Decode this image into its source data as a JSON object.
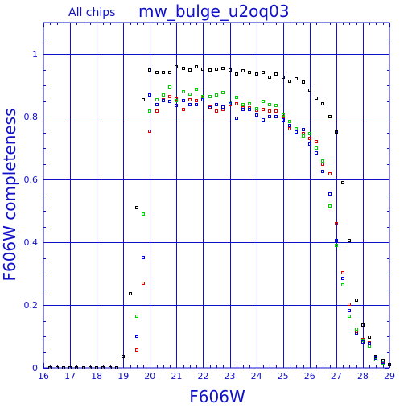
{
  "chart_data": {
    "type": "scatter",
    "subtitle": "All chips",
    "title": "mw_bulge_u2oq03",
    "xlabel": "F606W",
    "ylabel": "F606W completeness",
    "xlim": [
      16,
      29
    ],
    "ylim": [
      0,
      1.1
    ],
    "x_ticks": [
      16,
      17,
      18,
      19,
      20,
      21,
      22,
      23,
      24,
      25,
      26,
      27,
      28,
      29
    ],
    "y_ticks": [
      0,
      0.2,
      0.4,
      0.6,
      0.8,
      1
    ],
    "y_tick_labels": [
      "0",
      "0.2",
      "0.4",
      "0.6",
      "0.8",
      "1"
    ],
    "grid": true,
    "colors": {
      "axis": "#1010c8",
      "black": "#000000",
      "red": "#e00000",
      "green": "#00d000",
      "blue": "#0000e0"
    },
    "series": [
      {
        "color": "#000000",
        "points": [
          [
            16.25,
            0
          ],
          [
            16.5,
            0
          ],
          [
            16.75,
            0
          ],
          [
            17,
            0
          ],
          [
            17.25,
            0
          ],
          [
            17.5,
            0
          ],
          [
            17.75,
            0
          ],
          [
            18,
            0
          ],
          [
            18.25,
            0
          ],
          [
            18.5,
            0
          ],
          [
            18.75,
            0
          ],
          [
            19,
            0.035
          ],
          [
            19.25,
            0.235
          ],
          [
            19.5,
            0.51
          ],
          [
            19.75,
            0.855
          ],
          [
            20,
            0.948
          ],
          [
            20.25,
            0.942
          ],
          [
            20.5,
            0.942
          ],
          [
            20.75,
            0.942
          ],
          [
            21,
            0.96
          ],
          [
            21.25,
            0.955
          ],
          [
            21.5,
            0.948
          ],
          [
            21.75,
            0.96
          ],
          [
            22,
            0.952
          ],
          [
            22.25,
            0.948
          ],
          [
            22.5,
            0.952
          ],
          [
            22.75,
            0.955
          ],
          [
            23,
            0.95
          ],
          [
            23.25,
            0.935
          ],
          [
            23.5,
            0.945
          ],
          [
            23.75,
            0.942
          ],
          [
            24,
            0.935
          ],
          [
            24.25,
            0.942
          ],
          [
            24.5,
            0.925
          ],
          [
            24.75,
            0.935
          ],
          [
            25,
            0.925
          ],
          [
            25.25,
            0.912
          ],
          [
            25.5,
            0.92
          ],
          [
            25.75,
            0.91
          ],
          [
            26,
            0.885
          ],
          [
            26.25,
            0.86
          ],
          [
            26.5,
            0.84
          ],
          [
            26.75,
            0.8
          ],
          [
            27,
            0.752
          ],
          [
            27.25,
            0.59
          ],
          [
            27.5,
            0.405
          ],
          [
            27.75,
            0.215
          ],
          [
            28,
            0.135
          ],
          [
            28.25,
            0.097
          ],
          [
            28.5,
            0.037
          ],
          [
            28.75,
            0.022
          ],
          [
            29,
            0.01
          ]
        ]
      },
      {
        "color": "#e00000",
        "points": [
          [
            19.5,
            0.057
          ],
          [
            19.75,
            0.27
          ],
          [
            20,
            0.755
          ],
          [
            20.25,
            0.818
          ],
          [
            20.5,
            0.855
          ],
          [
            20.75,
            0.865
          ],
          [
            21,
            0.857
          ],
          [
            21.25,
            0.822
          ],
          [
            21.5,
            0.855
          ],
          [
            21.75,
            0.852
          ],
          [
            22,
            0.862
          ],
          [
            22.25,
            0.832
          ],
          [
            22.5,
            0.818
          ],
          [
            22.75,
            0.822
          ],
          [
            23,
            0.838
          ],
          [
            23.25,
            0.842
          ],
          [
            23.5,
            0.828
          ],
          [
            23.75,
            0.828
          ],
          [
            24,
            0.82
          ],
          [
            24.25,
            0.822
          ],
          [
            24.5,
            0.818
          ],
          [
            24.75,
            0.818
          ],
          [
            25,
            0.8
          ],
          [
            25.25,
            0.762
          ],
          [
            25.5,
            0.762
          ],
          [
            25.75,
            0.745
          ],
          [
            26,
            0.73
          ],
          [
            26.25,
            0.72
          ],
          [
            26.5,
            0.65
          ],
          [
            26.75,
            0.618
          ],
          [
            27,
            0.46
          ],
          [
            27.25,
            0.302
          ],
          [
            27.5,
            0.202
          ],
          [
            27.75,
            0.115
          ],
          [
            28,
            0.09
          ],
          [
            28.25,
            0.08
          ],
          [
            28.5,
            0.025
          ],
          [
            28.75,
            0.012
          ]
        ]
      },
      {
        "color": "#00d000",
        "points": [
          [
            19.5,
            0.165
          ],
          [
            19.75,
            0.49
          ],
          [
            20,
            0.818
          ],
          [
            20.25,
            0.855
          ],
          [
            20.5,
            0.87
          ],
          [
            20.75,
            0.895
          ],
          [
            21,
            0.852
          ],
          [
            21.25,
            0.88
          ],
          [
            21.5,
            0.872
          ],
          [
            21.75,
            0.888
          ],
          [
            22,
            0.865
          ],
          [
            22.25,
            0.865
          ],
          [
            22.5,
            0.868
          ],
          [
            22.75,
            0.878
          ],
          [
            23,
            0.845
          ],
          [
            23.25,
            0.862
          ],
          [
            23.5,
            0.838
          ],
          [
            23.75,
            0.842
          ],
          [
            24,
            0.825
          ],
          [
            24.25,
            0.85
          ],
          [
            24.5,
            0.838
          ],
          [
            24.75,
            0.835
          ],
          [
            25,
            0.805
          ],
          [
            25.25,
            0.785
          ],
          [
            25.5,
            0.762
          ],
          [
            25.75,
            0.738
          ],
          [
            26,
            0.745
          ],
          [
            26.25,
            0.7
          ],
          [
            26.5,
            0.66
          ],
          [
            26.75,
            0.515
          ],
          [
            27,
            0.39
          ],
          [
            27.25,
            0.265
          ],
          [
            27.5,
            0.165
          ],
          [
            27.75,
            0.122
          ],
          [
            28,
            0.087
          ],
          [
            28.25,
            0.068
          ],
          [
            28.5,
            0.025
          ],
          [
            28.75,
            0.015
          ]
        ]
      },
      {
        "color": "#0000e0",
        "points": [
          [
            19.5,
            0.1
          ],
          [
            19.75,
            0.352
          ],
          [
            20,
            0.87
          ],
          [
            20.25,
            0.838
          ],
          [
            20.5,
            0.852
          ],
          [
            20.75,
            0.848
          ],
          [
            21,
            0.835
          ],
          [
            21.25,
            0.852
          ],
          [
            21.5,
            0.838
          ],
          [
            21.75,
            0.838
          ],
          [
            22,
            0.855
          ],
          [
            22.25,
            0.828
          ],
          [
            22.5,
            0.838
          ],
          [
            22.75,
            0.832
          ],
          [
            23,
            0.842
          ],
          [
            23.25,
            0.795
          ],
          [
            23.5,
            0.822
          ],
          [
            23.75,
            0.822
          ],
          [
            24,
            0.805
          ],
          [
            24.25,
            0.79
          ],
          [
            24.5,
            0.8
          ],
          [
            24.75,
            0.8
          ],
          [
            25,
            0.79
          ],
          [
            25.25,
            0.772
          ],
          [
            25.5,
            0.752
          ],
          [
            25.75,
            0.76
          ],
          [
            26,
            0.712
          ],
          [
            26.25,
            0.685
          ],
          [
            26.5,
            0.625
          ],
          [
            26.75,
            0.555
          ],
          [
            27,
            0.405
          ],
          [
            27.25,
            0.285
          ],
          [
            27.5,
            0.182
          ],
          [
            27.75,
            0.11
          ],
          [
            28,
            0.082
          ],
          [
            28.25,
            0.077
          ],
          [
            28.5,
            0.032
          ],
          [
            28.75,
            0.018
          ]
        ]
      }
    ]
  }
}
